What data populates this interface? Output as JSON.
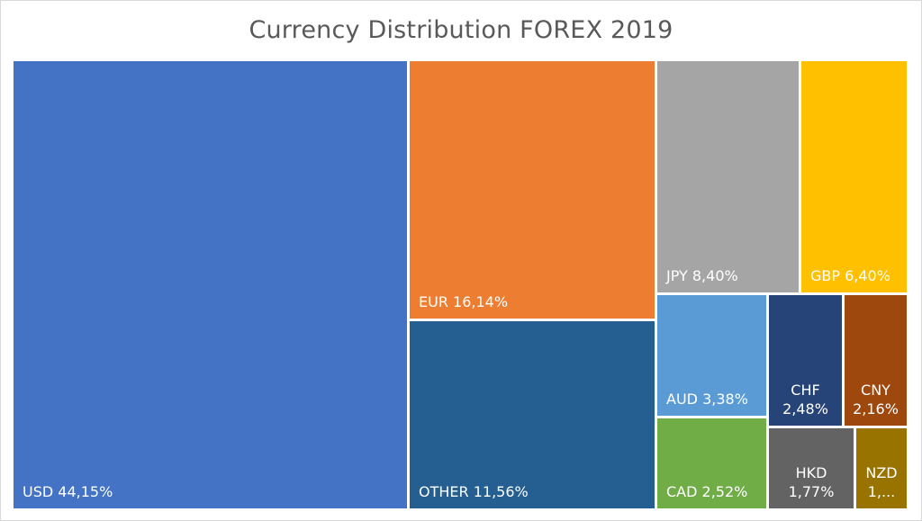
{
  "chart_data": {
    "type": "treemap",
    "title": "Currency Distribution FOREX 2019",
    "items": [
      {
        "name": "USD",
        "value": 44.15,
        "label": "USD 44,15%",
        "color": "#4472c4"
      },
      {
        "name": "EUR",
        "value": 16.14,
        "label": "EUR 16,14%",
        "color": "#ed7d31"
      },
      {
        "name": "OTHER",
        "value": 11.56,
        "label": "OTHER 11,56%",
        "color": "#255e91"
      },
      {
        "name": "JPY",
        "value": 8.4,
        "label": "JPY 8,40%",
        "color": "#a5a5a5"
      },
      {
        "name": "GBP",
        "value": 6.4,
        "label": "GBP 6,40%",
        "color": "#ffc000"
      },
      {
        "name": "AUD",
        "value": 3.38,
        "label": "AUD 3,38%",
        "color": "#5b9bd5"
      },
      {
        "name": "CAD",
        "value": 2.52,
        "label": "CAD 2,52%",
        "color": "#70ad47"
      },
      {
        "name": "CHF",
        "value": 2.48,
        "label": [
          "CHF",
          "2,48%"
        ],
        "color": "#264478"
      },
      {
        "name": "CNY",
        "value": 2.16,
        "label": [
          "CNY",
          "2,16%"
        ],
        "color": "#9e480e"
      },
      {
        "name": "HKD",
        "value": 1.77,
        "label": [
          "HKD",
          "1,77%"
        ],
        "color": "#636363"
      },
      {
        "name": "NZD",
        "value": 1.04,
        "label": [
          "NZD",
          "1,..."
        ],
        "color": "#997300"
      }
    ]
  }
}
